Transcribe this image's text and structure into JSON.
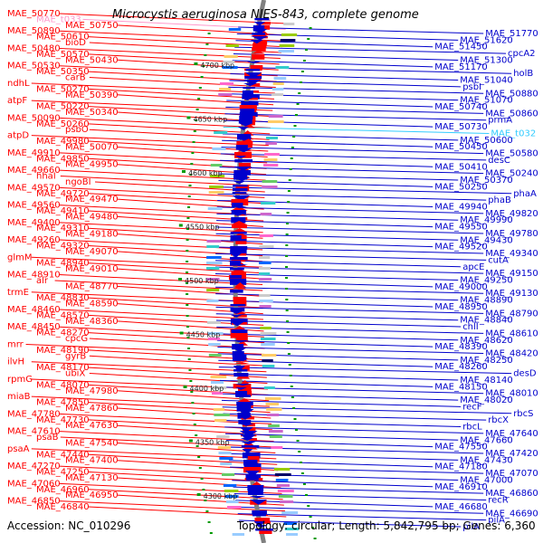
{
  "header": {
    "title": "Microcystis aeruginosa NIES-843, complete genome"
  },
  "footer": {
    "accession": "Accession: NC_010296",
    "topology": "Topology: circular; Length: 5,842,795 bp; Genes: 6,360"
  },
  "colors": {
    "forward": "#ff0000",
    "reverse": "#0000cc",
    "trna": "#ff99cc",
    "tick": "#009900",
    "backbone": "#808080"
  },
  "ruler": [
    "4700 kbp",
    "4650 kbp",
    "4600 kbp",
    "4550 kbp",
    "4500 kbp",
    "4450 kbp",
    "4400 kbp",
    "4350 kbp",
    "4300 kbp"
  ],
  "left_labels": [
    "MAE_50770",
    "MAE_t033",
    "MAE_50750",
    "MAE_50890",
    "MAE_50610",
    "bioD",
    "MAE_50480",
    "MAE_50570",
    "MAE_50430",
    "MAE_50530",
    "MAE_50350",
    "carB",
    "ndhL",
    "MAE_50270",
    "MAE_50390",
    "atpF",
    "MAE_50220",
    "MAE_50340",
    "MAE_50090",
    "MAE_50260",
    "psbO",
    "atpD",
    "MAE_49980",
    "MAE_50070",
    "MAE_49910",
    "MAE_49850",
    "MAE_49950",
    "MAE_49660",
    "hhaI",
    "ngoBI",
    "MAE_49570",
    "MAE_49720",
    "MAE_49470",
    "MAE_49560",
    "MAE_49410",
    "MAE_49480",
    "MAE_49400",
    "MAE_49310",
    "MAE_49180",
    "MAE_49260",
    "MAE_49320",
    "MAE_49070",
    "glmM",
    "MAE_48940",
    "MAE_49010",
    "MAE_48910",
    "alr",
    "MAE_48770",
    "trmE",
    "MAE_48830",
    "MAE_48590",
    "MAE_48460",
    "MAE_48570",
    "MAE_48360",
    "MAE_48450",
    "MAE_48270",
    "cpcG",
    "mrr",
    "MAE_48190",
    "gyrB",
    "ilvH",
    "MAE_48170",
    "ubiX",
    "rpmG",
    "MAE_48070",
    "MAE_47980",
    "miaB",
    "MAE_47850",
    "MAE_47860",
    "MAE_47780",
    "MAE_47730",
    "MAE_47630",
    "MAE_47610",
    "psaB",
    "MAE_47540",
    "psaA",
    "MAE_47440",
    "MAE_47400",
    "MAE_47270",
    "MAE_47250",
    "MAE_47130",
    "MAE_47060",
    "MAE_46960",
    "MAE_46950",
    "MAE_46850",
    "MAE_46840"
  ],
  "right_labels": [
    "MAE_51770",
    "MAE_51620",
    "MAE_51450",
    "cpcA2",
    "MAE_51300",
    "MAE_51170",
    "holB",
    "MAE_51040",
    "psbI",
    "MAE_50880",
    "MAE_51070",
    "MAE_50740",
    "MAE_50860",
    "prmA",
    "MAE_50730",
    "MAE_t032",
    "MAE_50600",
    "MAE_50450",
    "MAE_50580",
    "desC",
    "MAE_50410",
    "MAE_50240",
    "MAE_50370",
    "MAE_50250",
    "phaA",
    "phaB",
    "MAE_49940",
    "MAE_49820",
    "MAE_49990",
    "MAE_49550",
    "MAE_49780",
    "MAE_49430",
    "MAE_49520",
    "MAE_49340",
    "cutA",
    "apcE",
    "MAE_49150",
    "MAE_49250",
    "MAE_49000",
    "MAE_49130",
    "MAE_48890",
    "MAE_48950",
    "MAE_48790",
    "MAE_48840",
    "chlI",
    "MAE_48610",
    "MAE_48620",
    "MAE_48390",
    "MAE_48420",
    "MAE_48250",
    "MAE_48260",
    "desD",
    "MAE_48140",
    "MAE_48150",
    "MAE_48010",
    "MAE_48020",
    "recF",
    "rbcS",
    "rbcX",
    "rbcL",
    "MAE_47640",
    "MAE_47660",
    "MAE_47550",
    "MAE_47420",
    "MAE_47430",
    "MAE_47180",
    "MAE_47070",
    "MAE_47000",
    "MAE_46910",
    "MAE_46860",
    "recR",
    "MAE_46680",
    "MAE_46690",
    "pilA",
    "pilA"
  ]
}
